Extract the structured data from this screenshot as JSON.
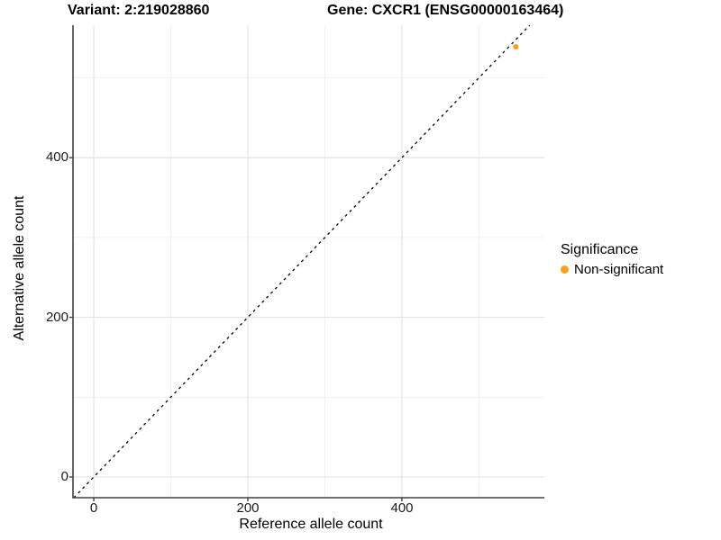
{
  "chart_data": {
    "type": "scatter",
    "title_left": "Variant: 2:219028860",
    "title_right": "Gene: CXCR1 (ENSG00000163464)",
    "xlabel": "Reference allele count",
    "ylabel": "Alternative allele count",
    "xlim": [
      -27,
      585
    ],
    "ylim": [
      -26,
      566
    ],
    "x_ticks": [
      0,
      200,
      400
    ],
    "x_tick_labels": [
      "0",
      "200",
      "400"
    ],
    "y_ticks": [
      0,
      200,
      400
    ],
    "y_tick_labels": [
      "0",
      "200",
      "400"
    ],
    "x_minor_ticks": [
      100,
      300,
      500
    ],
    "y_minor_ticks": [
      100,
      300,
      500
    ],
    "grid": "major+minor",
    "reference_line": {
      "slope": 1,
      "intercept": 0,
      "style": "dashed",
      "color": "#000000"
    },
    "series": [
      {
        "name": "Non-significant",
        "marker": "circle",
        "color": "#F9A11B",
        "points": [
          {
            "x": 548,
            "y": 539
          }
        ]
      }
    ],
    "legend": {
      "title": "Significance",
      "position": "right",
      "entries": [
        {
          "label": "Non-significant",
          "color": "#F9A11B"
        }
      ]
    },
    "colors": {
      "grid_major": "#E3E3E3",
      "grid_minor": "#EFEFEF",
      "axis_line": "#404040",
      "text": "#000000"
    }
  }
}
